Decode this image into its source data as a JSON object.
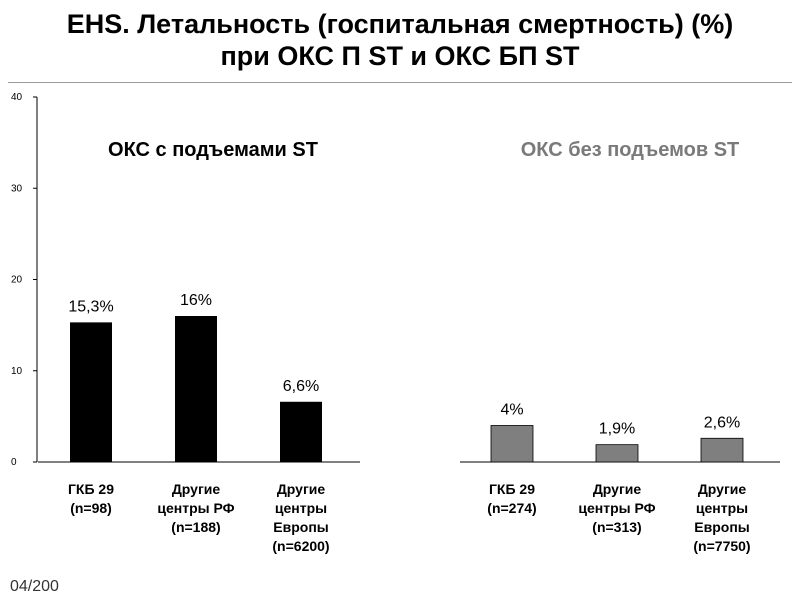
{
  "title": {
    "line1": "EHS. Летальность (госпитальная смертность) (%)",
    "line2": "при ОКС П ST и ОКС БП ST"
  },
  "footer": "04/200",
  "colors": {
    "group1": "#000000",
    "group2": "#7f7f7f"
  },
  "chart_data": {
    "type": "bar",
    "ylim": [
      0,
      40
    ],
    "yticks": [
      "0",
      "10",
      "20",
      "30",
      "40"
    ],
    "grid": false,
    "groups": [
      {
        "title": "ОКС с подъемами ST",
        "categories": [
          [
            "ГКБ 29",
            "(n=98)"
          ],
          [
            "Другие",
            "центры РФ",
            "(n=188)"
          ],
          [
            "Другие",
            "центры",
            "Европы",
            "(n=6200)"
          ]
        ],
        "values": [
          15.3,
          16,
          6.6
        ],
        "value_labels": [
          "15,3%",
          "16%",
          "6,6%"
        ]
      },
      {
        "title": "ОКС без подъемов ST",
        "categories": [
          [
            "ГКБ 29",
            "(n=274)"
          ],
          [
            "Другие",
            "центры РФ",
            "(n=313)"
          ],
          [
            "Другие",
            "центры",
            "Европы",
            "(n=7750)"
          ]
        ],
        "values": [
          4,
          1.9,
          2.6
        ],
        "value_labels": [
          "4%",
          "1,9%",
          "2,6%"
        ]
      }
    ]
  }
}
